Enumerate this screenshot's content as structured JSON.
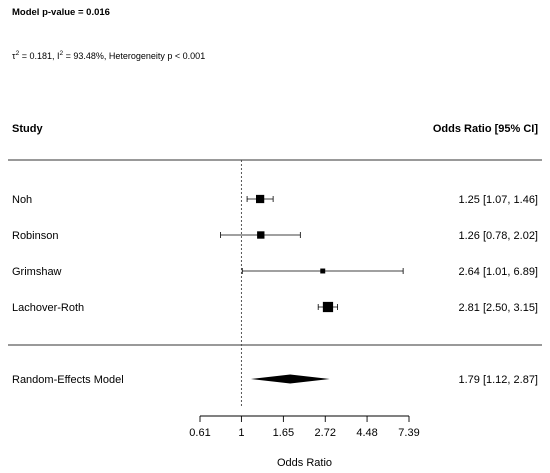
{
  "header": {
    "model_p": "Model p-value = 0.016",
    "tau_symbol": "τ",
    "tau_sup": "2",
    "tau_rest": " = 0.181, I",
    "i_sup": "2",
    "het_rest": " = 93.48%, Heterogeneity p < 0.001"
  },
  "columns": {
    "study": "Study",
    "effect": "Odds Ratio [95% CI]"
  },
  "chart_data": {
    "type": "forest",
    "xlabel": "Odds Ratio",
    "x_scale": "log",
    "reference_line": 1,
    "xticks": [
      {
        "value": 0.61,
        "label": "0.61"
      },
      {
        "value": 1,
        "label": "1"
      },
      {
        "value": 1.65,
        "label": "1.65"
      },
      {
        "value": 2.72,
        "label": "2.72"
      },
      {
        "value": 4.48,
        "label": "4.48"
      },
      {
        "value": 7.39,
        "label": "7.39"
      }
    ],
    "studies": [
      {
        "name": "Noh",
        "or": 1.25,
        "lo": 1.07,
        "hi": 1.46,
        "label": "1.25 [1.07, 1.46]",
        "weight": 0.27
      },
      {
        "name": "Robinson",
        "or": 1.26,
        "lo": 0.78,
        "hi": 2.02,
        "label": "1.26 [0.78, 2.02]",
        "weight": 0.2
      },
      {
        "name": "Grimshaw",
        "or": 2.64,
        "lo": 1.01,
        "hi": 6.89,
        "label": "2.64 [1.01, 6.89]",
        "weight": 0.06
      },
      {
        "name": "Lachover-Roth",
        "or": 2.81,
        "lo": 2.5,
        "hi": 3.15,
        "label": "2.81 [2.50, 3.15]",
        "weight": 0.47
      }
    ],
    "summary": {
      "name": "Random-Effects Model",
      "or": 1.79,
      "lo": 1.12,
      "hi": 2.87,
      "label": "1.79 [1.12, 2.87]"
    }
  }
}
